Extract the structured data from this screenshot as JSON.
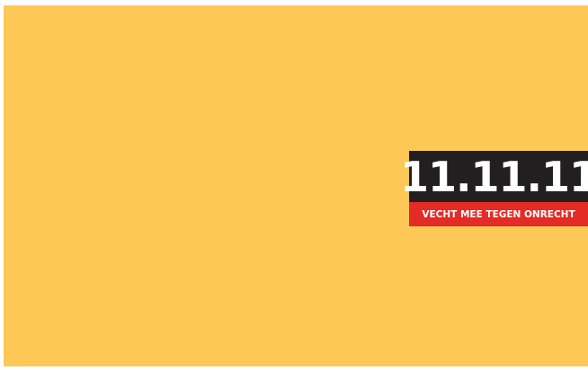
{
  "logo": {
    "title": "11.11.11",
    "tagline": "VECHT MEE TEGEN ONRECHT"
  }
}
